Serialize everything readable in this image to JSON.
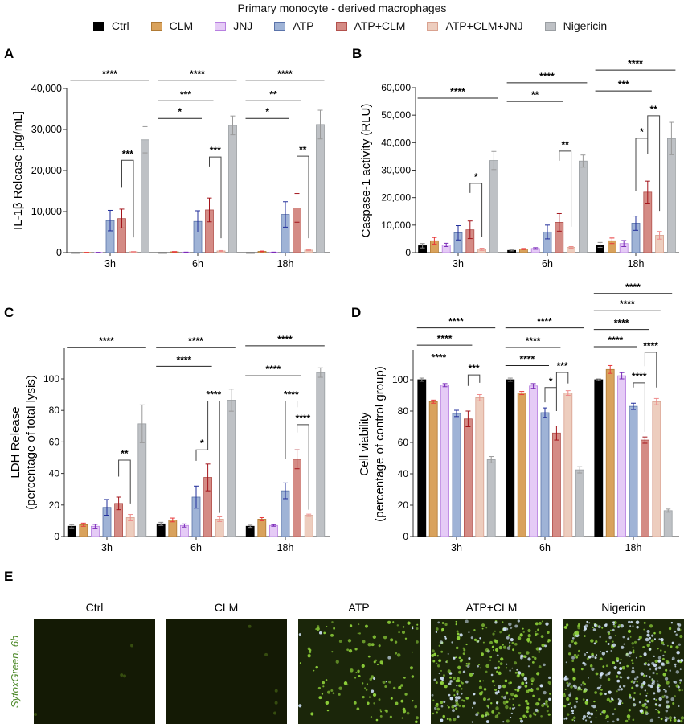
{
  "title": "Primary monocyte - derived macrophages",
  "legend": [
    {
      "label": "Ctrl",
      "fill": "#000000",
      "edge": "#000000",
      "err": "#8a8a8a"
    },
    {
      "label": "CLM",
      "fill": "#D9A25C",
      "edge": "#B07A35",
      "err": "#E8383A"
    },
    {
      "label": "JNJ",
      "fill": "#E5CBF6",
      "edge": "#B77FE0",
      "err": "#7A2BB8"
    },
    {
      "label": "ATP",
      "fill": "#9FB3D6",
      "edge": "#5A73AA",
      "err": "#1F2C9A"
    },
    {
      "label": "ATP+CLM",
      "fill": "#D48B85",
      "edge": "#B2504C",
      "err": "#A3141B"
    },
    {
      "label": "ATP+CLM+JNJ",
      "fill": "#EDCDBE",
      "edge": "#D9A18F",
      "err": "#EE8A8A"
    },
    {
      "label": "Nigericin",
      "fill": "#BEC1C5",
      "edge": "#9A9EA2",
      "err": "#9a9a9a"
    }
  ],
  "chart_data": [
    {
      "panel": "A",
      "type": "bar",
      "ylabel": [
        "IL-1β Release [pg/mL]"
      ],
      "categories": [
        "3h",
        "6h",
        "18h"
      ],
      "ylim": [
        0,
        40000
      ],
      "yticks": [
        0,
        10000,
        20000,
        30000,
        40000
      ],
      "ytick_labels": [
        "0",
        "10,000",
        "20,000",
        "30,000",
        "40,000"
      ],
      "series": [
        {
          "name": "Ctrl",
          "values": [
            0,
            0,
            0
          ],
          "sem": [
            0,
            0,
            0
          ]
        },
        {
          "name": "CLM",
          "values": [
            50,
            200,
            300
          ],
          "sem": [
            20,
            60,
            80
          ]
        },
        {
          "name": "JNJ",
          "values": [
            50,
            100,
            100
          ],
          "sem": [
            20,
            30,
            30
          ]
        },
        {
          "name": "ATP",
          "values": [
            7800,
            7600,
            9300
          ],
          "sem": [
            2500,
            2600,
            3100
          ]
        },
        {
          "name": "ATP+CLM",
          "values": [
            8300,
            10400,
            10900
          ],
          "sem": [
            2300,
            2900,
            3500
          ]
        },
        {
          "name": "ATP+CLM+JNJ",
          "values": [
            200,
            400,
            600
          ],
          "sem": [
            80,
            100,
            150
          ]
        },
        {
          "name": "Nigericin",
          "values": [
            27500,
            31000,
            31200
          ],
          "sem": [
            3200,
            2300,
            3500
          ]
        }
      ],
      "annotations": [
        {
          "g": 0,
          "from": 0,
          "to": 6,
          "y": 42000,
          "label": "****",
          "type": "line"
        },
        {
          "g": 0,
          "from": 4,
          "to": 5,
          "y": 22500,
          "yl": 15800,
          "yr": 3700,
          "label": "***",
          "type": "bracket"
        },
        {
          "g": 1,
          "from": 0,
          "to": 6,
          "y": 42000,
          "label": "****",
          "type": "line"
        },
        {
          "g": 1,
          "from": 0,
          "to": 4,
          "y": 37000,
          "label": "***",
          "type": "line"
        },
        {
          "g": 1,
          "from": 0,
          "to": 3,
          "y": 32700,
          "label": "*",
          "type": "line"
        },
        {
          "g": 1,
          "from": 4,
          "to": 5,
          "y": 23300,
          "yl": 21000,
          "yr": 3500,
          "label": "***",
          "type": "bracket"
        },
        {
          "g": 2,
          "from": 0,
          "to": 6,
          "y": 42000,
          "label": "****",
          "type": "line"
        },
        {
          "g": 2,
          "from": 0,
          "to": 4,
          "y": 37000,
          "label": "**",
          "type": "line"
        },
        {
          "g": 2,
          "from": 0,
          "to": 3,
          "y": 32700,
          "label": "*",
          "type": "line"
        },
        {
          "g": 2,
          "from": 4,
          "to": 5,
          "y": 23500,
          "yl": 21000,
          "yr": 3500,
          "label": "**",
          "type": "bracket"
        }
      ]
    },
    {
      "panel": "B",
      "type": "bar",
      "ylabel": [
        "Caspase-1 activity (RLU)"
      ],
      "categories": [
        "3h",
        "6h",
        "18h"
      ],
      "ylim": [
        0,
        60000
      ],
      "yticks": [
        0,
        10000,
        20000,
        30000,
        40000,
        50000,
        60000
      ],
      "ytick_labels": [
        "0",
        "10,000",
        "20,000",
        "30,000",
        "40,000",
        "50,000",
        "60,000"
      ],
      "series": [
        {
          "name": "Ctrl",
          "values": [
            2500,
            800,
            2800
          ],
          "sem": [
            800,
            200,
            900
          ]
        },
        {
          "name": "CLM",
          "values": [
            4300,
            1300,
            4300
          ],
          "sem": [
            1200,
            200,
            1000
          ]
        },
        {
          "name": "JNJ",
          "values": [
            2800,
            1500,
            3300
          ],
          "sem": [
            600,
            300,
            1100
          ]
        },
        {
          "name": "ATP",
          "values": [
            7200,
            7500,
            10700
          ],
          "sem": [
            2600,
            2500,
            2600
          ]
        },
        {
          "name": "ATP+CLM",
          "values": [
            8300,
            11000,
            22000
          ],
          "sem": [
            3200,
            3200,
            4000
          ]
        },
        {
          "name": "ATP+CLM+JNJ",
          "values": [
            1200,
            1900,
            6300
          ],
          "sem": [
            400,
            300,
            1400
          ]
        },
        {
          "name": "Nigericin",
          "values": [
            33500,
            33300,
            41500
          ],
          "sem": [
            3300,
            2200,
            5900
          ]
        }
      ],
      "annotations": [
        {
          "g": 0,
          "from": 0,
          "to": 6,
          "y": 56200,
          "label": "****",
          "type": "line"
        },
        {
          "g": 0,
          "from": 4,
          "to": 5,
          "y": 25200,
          "yl": 21700,
          "yr": 5600,
          "label": "*",
          "type": "bracket"
        },
        {
          "g": 1,
          "from": 0,
          "to": 6,
          "y": 61800,
          "label": "****",
          "type": "line"
        },
        {
          "g": 1,
          "from": 0,
          "to": 4,
          "y": 55000,
          "label": "**",
          "type": "line"
        },
        {
          "g": 1,
          "from": 4,
          "to": 5,
          "y": 36900,
          "yl": 33400,
          "yr": 9400,
          "label": "**",
          "type": "bracket"
        },
        {
          "g": 2,
          "from": 0,
          "to": 6,
          "y": 66400,
          "label": "****",
          "type": "line"
        },
        {
          "g": 2,
          "from": 0,
          "to": 4,
          "y": 58800,
          "label": "***",
          "type": "line"
        },
        {
          "g": 2,
          "from": 3,
          "to": 4,
          "y": 41600,
          "yl": 22500,
          "yr": 35700,
          "label": "*",
          "type": "bracket"
        },
        {
          "g": 2,
          "from": 4,
          "to": 5,
          "y": 49800,
          "yl": 41600,
          "yr": 15200,
          "label": "**",
          "type": "bracket"
        }
      ]
    },
    {
      "panel": "C",
      "type": "bar",
      "ylabel": [
        "LDH Release",
        "(percentage of total lysis)"
      ],
      "categories": [
        "3h",
        "6h",
        "18h"
      ],
      "ylim": [
        0,
        120
      ],
      "yticks": [
        0,
        20,
        40,
        60,
        80,
        100
      ],
      "ytick_labels": [
        "0",
        "20",
        "40",
        "60",
        "80",
        "100"
      ],
      "series": [
        {
          "name": "Ctrl",
          "values": [
            6.5,
            8,
            6.5
          ],
          "sem": [
            1,
            1,
            0.7
          ]
        },
        {
          "name": "CLM",
          "values": [
            7.5,
            10.5,
            11
          ],
          "sem": [
            1,
            1.2,
            1
          ]
        },
        {
          "name": "JNJ",
          "values": [
            6.5,
            7,
            7
          ],
          "sem": [
            1.2,
            1,
            0.5
          ]
        },
        {
          "name": "ATP",
          "values": [
            18.5,
            25,
            29
          ],
          "sem": [
            5,
            7,
            5
          ]
        },
        {
          "name": "ATP+CLM",
          "values": [
            21,
            37.5,
            49
          ],
          "sem": [
            4,
            8.5,
            6
          ]
        },
        {
          "name": "ATP+CLM+JNJ",
          "values": [
            12,
            11,
            13.5
          ],
          "sem": [
            2,
            1.5,
            0.7
          ]
        },
        {
          "name": "Nigericin",
          "values": [
            71.5,
            86.5,
            104
          ],
          "sem": [
            12,
            7,
            3
          ]
        }
      ],
      "annotations": [
        {
          "g": 0,
          "from": 0,
          "to": 6,
          "y": 120,
          "label": "****",
          "type": "line"
        },
        {
          "g": 0,
          "from": 4,
          "to": 5,
          "y": 48.5,
          "yl": 38,
          "yr": 21,
          "label": "**",
          "type": "bracket"
        },
        {
          "g": 1,
          "from": 0,
          "to": 6,
          "y": 120,
          "label": "****",
          "type": "line"
        },
        {
          "g": 1,
          "from": 0,
          "to": 4,
          "y": 108,
          "label": "****",
          "type": "line"
        },
        {
          "g": 1,
          "from": 3,
          "to": 4,
          "y": 55,
          "yl": 48,
          "yr": 55,
          "label": "*",
          "type": "bracket"
        },
        {
          "g": 1,
          "from": 4,
          "to": 5,
          "y": 86,
          "yl": 55,
          "yr": 15,
          "label": "****",
          "type": "bracket"
        },
        {
          "g": 2,
          "from": 0,
          "to": 6,
          "y": 121,
          "label": "****",
          "type": "line"
        },
        {
          "g": 2,
          "from": 0,
          "to": 4,
          "y": 102,
          "label": "****",
          "type": "line"
        },
        {
          "g": 2,
          "from": 3,
          "to": 4,
          "y": 86,
          "yl": 49.5,
          "yr": 82,
          "label": "****",
          "type": "bracket"
        },
        {
          "g": 2,
          "from": 4,
          "to": 5,
          "y": 71,
          "yl": 66,
          "yr": 17,
          "label": "****",
          "type": "bracket"
        }
      ]
    },
    {
      "panel": "D",
      "type": "bar",
      "ylabel": [
        "Cell viability",
        "(percentage of control group)"
      ],
      "categories": [
        "3h",
        "6h",
        "18h"
      ],
      "ylim": [
        0,
        120
      ],
      "yticks": [
        0,
        20,
        40,
        60,
        80,
        100
      ],
      "ytick_labels": [
        "0",
        "20",
        "40",
        "60",
        "80",
        "100"
      ],
      "series": [
        {
          "name": "Ctrl",
          "values": [
            100,
            100,
            100
          ],
          "sem": [
            1,
            1,
            0.5
          ]
        },
        {
          "name": "CLM",
          "values": [
            86,
            91.5,
            106.5
          ],
          "sem": [
            1,
            1,
            2.5
          ]
        },
        {
          "name": "JNJ",
          "values": [
            96.5,
            96,
            102.5
          ],
          "sem": [
            1,
            1.5,
            2
          ]
        },
        {
          "name": "ATP",
          "values": [
            78.5,
            79,
            83
          ],
          "sem": [
            2,
            3,
            2
          ]
        },
        {
          "name": "ATP+CLM",
          "values": [
            75,
            66,
            61.5
          ],
          "sem": [
            5,
            4.5,
            2
          ]
        },
        {
          "name": "ATP+CLM+JNJ",
          "values": [
            88.5,
            91.5,
            86
          ],
          "sem": [
            2,
            1.5,
            2
          ]
        },
        {
          "name": "Nigericin",
          "values": [
            49,
            42.5,
            16.5
          ],
          "sem": [
            2,
            2,
            1
          ]
        }
      ],
      "annotations": [
        {
          "g": 0,
          "from": 0,
          "to": 6,
          "y": 133,
          "label": "****",
          "type": "line"
        },
        {
          "g": 0,
          "from": 0,
          "to": 4,
          "y": 122,
          "label": "****",
          "type": "line"
        },
        {
          "g": 0,
          "from": 0,
          "to": 3,
          "y": 110,
          "label": "****",
          "type": "line"
        },
        {
          "g": 0,
          "from": 4,
          "to": 5,
          "y": 103,
          "yl": 96,
          "yr": 98,
          "label": "***",
          "type": "bracket"
        },
        {
          "g": 1,
          "from": 0,
          "to": 6,
          "y": 133,
          "label": "****",
          "type": "line"
        },
        {
          "g": 1,
          "from": 0,
          "to": 4,
          "y": 120.5,
          "label": "****",
          "type": "line"
        },
        {
          "g": 1,
          "from": 0,
          "to": 3,
          "y": 109,
          "label": "****",
          "type": "line"
        },
        {
          "g": 1,
          "from": 3,
          "to": 4,
          "y": 95,
          "yl": 85.6,
          "yr": 80,
          "label": "*",
          "type": "bracket"
        },
        {
          "g": 1,
          "from": 4,
          "to": 5,
          "y": 104.6,
          "yl": 95,
          "yr": 97.6,
          "label": "***",
          "type": "bracket"
        },
        {
          "g": 2,
          "from": 0,
          "to": 6,
          "y": 155,
          "label": "****",
          "type": "line"
        },
        {
          "g": 2,
          "from": 0,
          "to": 5,
          "y": 144,
          "label": "****",
          "type": "line"
        },
        {
          "g": 2,
          "from": 0,
          "to": 4,
          "y": 132,
          "label": "****",
          "type": "line"
        },
        {
          "g": 2,
          "from": 0,
          "to": 3,
          "y": 121,
          "label": "****",
          "type": "line"
        },
        {
          "g": 2,
          "from": 4,
          "to": 5,
          "y": 117.5,
          "yl": 108.6,
          "yr": 95,
          "label": "****",
          "type": "bracket"
        },
        {
          "g": 2,
          "from": 3,
          "to": 4,
          "y": 98,
          "yl": 95,
          "yr": 66.7,
          "label": "****",
          "type": "bracket"
        }
      ]
    }
  ],
  "panel_e": {
    "label": "E",
    "side_label": "SytoxGreen, 6h",
    "side_label_color": "#4E8A2A",
    "images": [
      {
        "label": "Ctrl"
      },
      {
        "label": "CLM"
      },
      {
        "label": "ATP"
      },
      {
        "label": "ATP+CLM"
      },
      {
        "label": "Nigericin"
      }
    ]
  }
}
